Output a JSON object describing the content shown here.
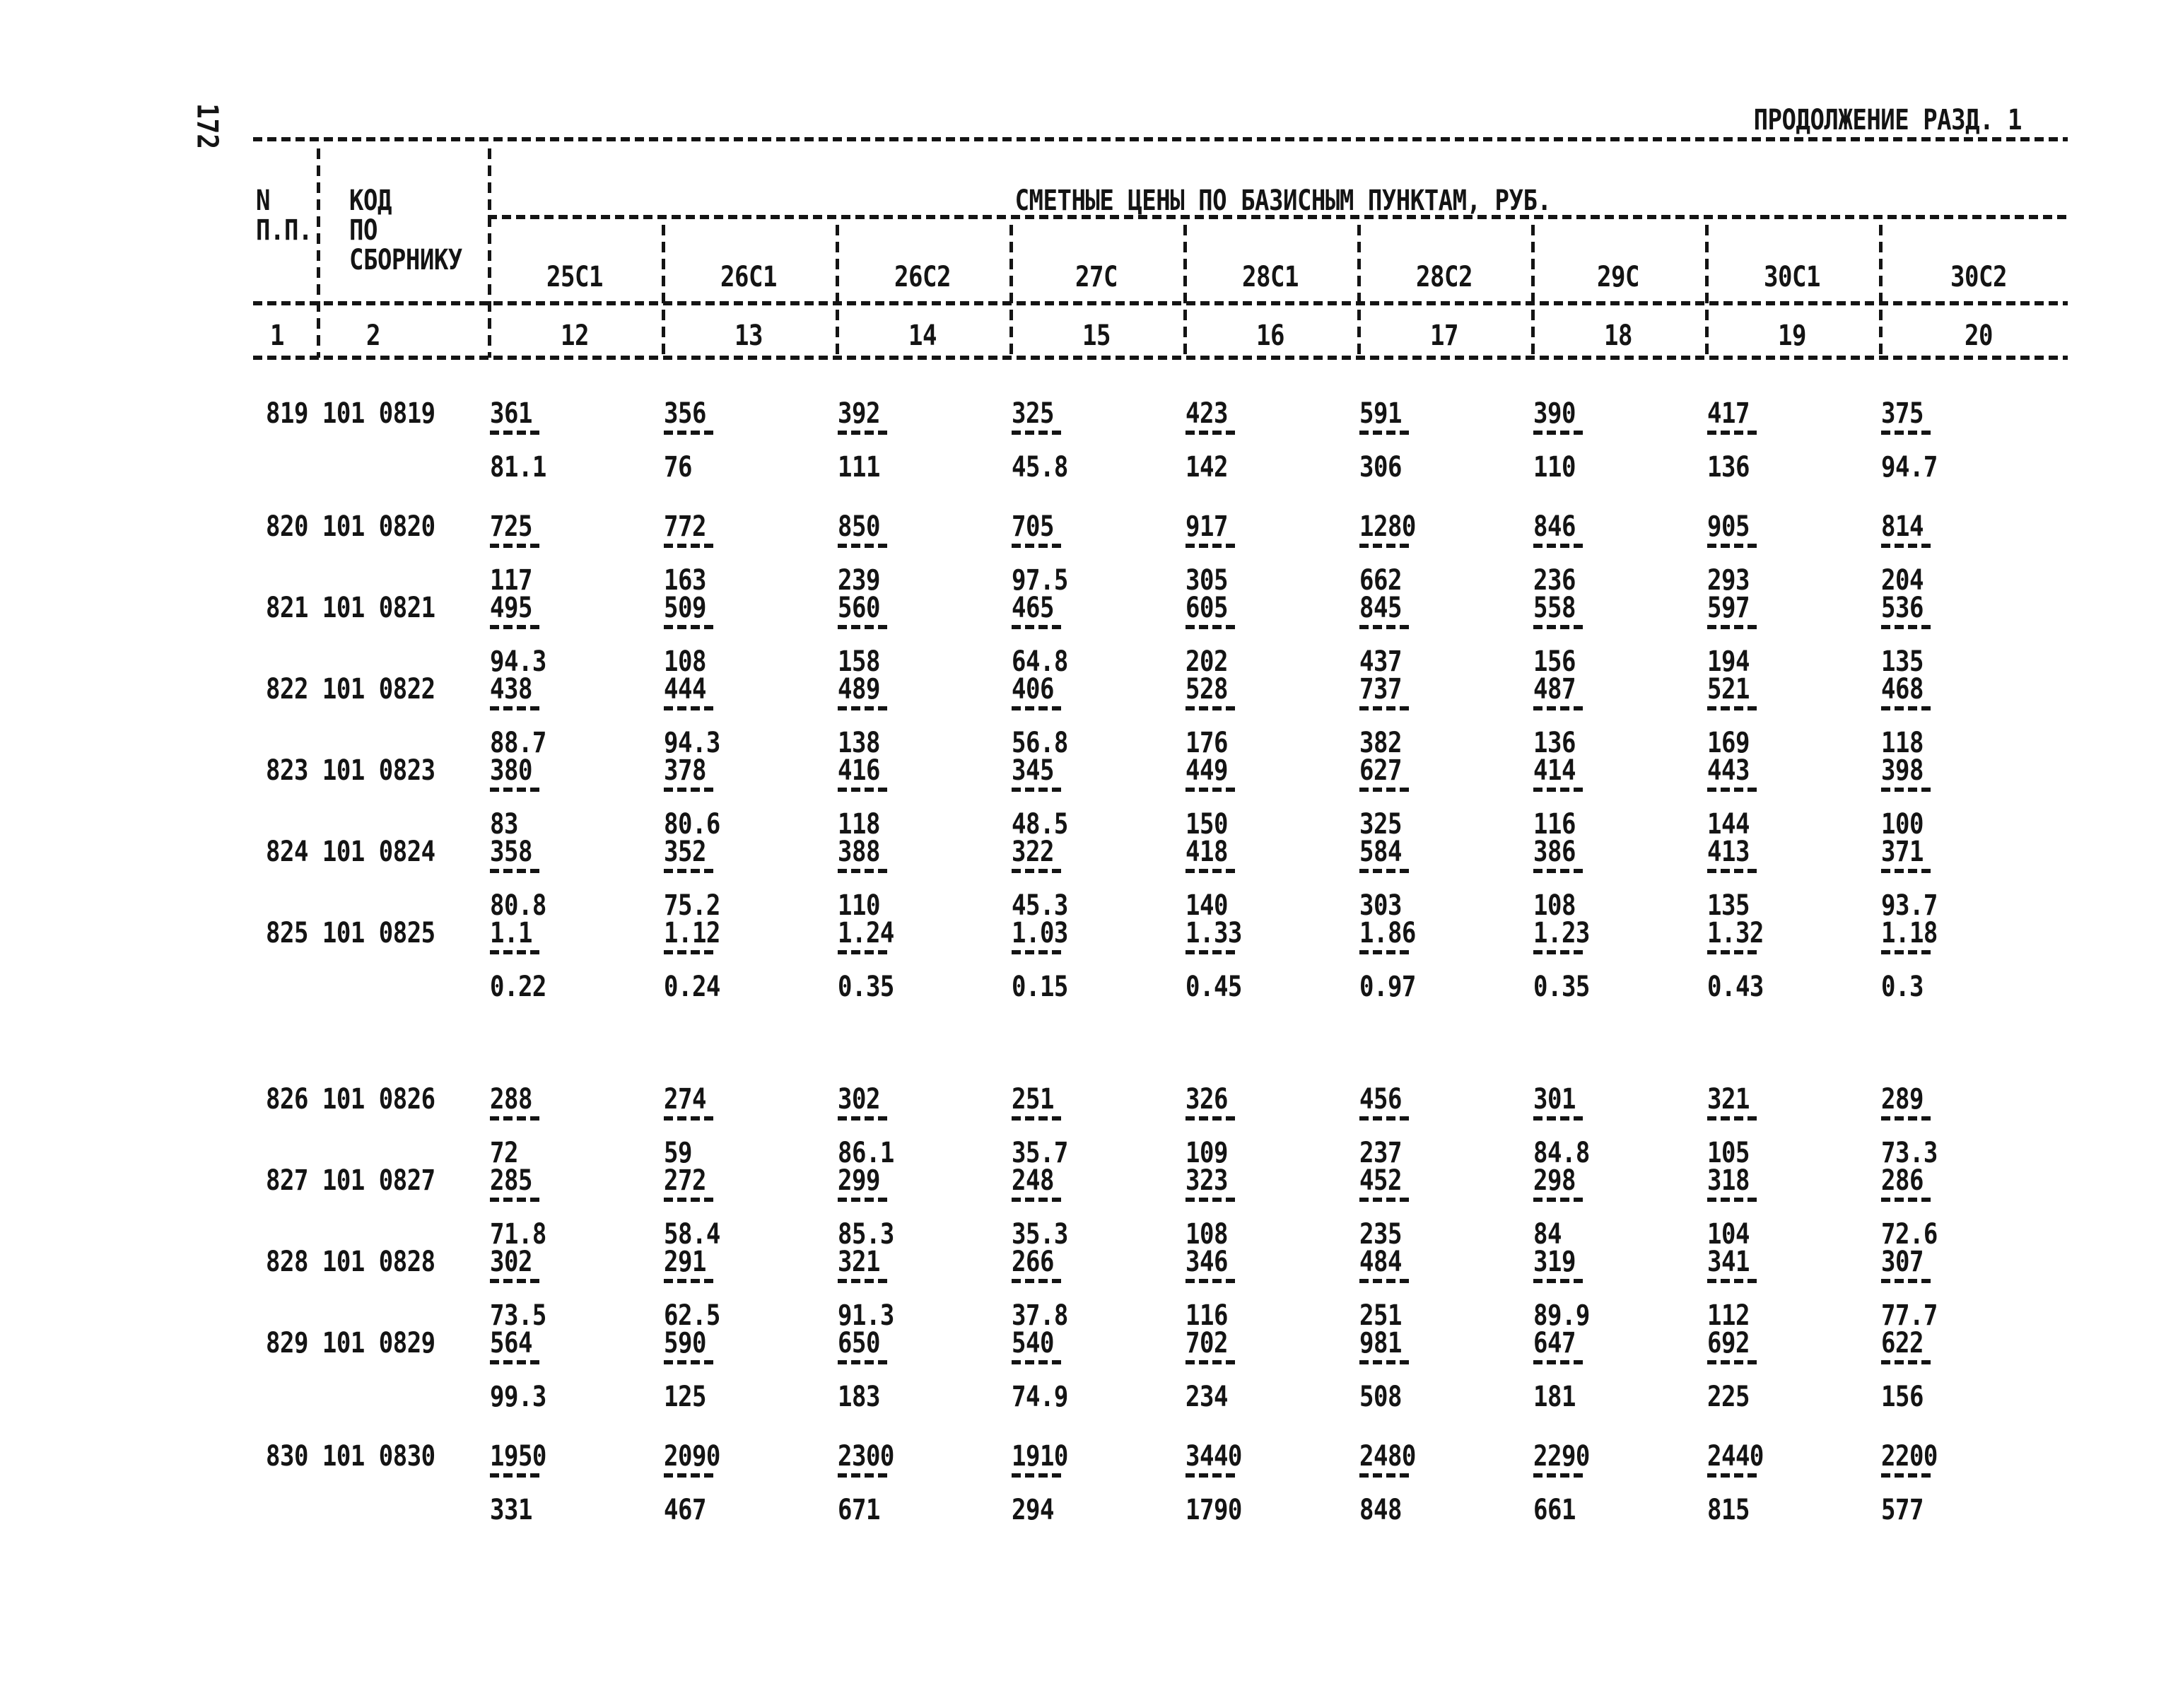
{
  "page": {
    "number": "172",
    "continuation": "ПРОДОЛЖЕНИЕ РАЗД. 1"
  },
  "colors": {
    "ink": "#141414",
    "paper": "#ffffff"
  },
  "table": {
    "group_title": "СМЕТНЫЕ ЦЕНЫ ПО БАЗИСНЫМ ПУНКТАМ, РУБ.",
    "col_n": {
      "line1": "N",
      "line2": "П.П.",
      "number": "1"
    },
    "col_code": {
      "line1": "КОД",
      "line2": "ПО",
      "line3": "СБОРНИКУ",
      "number": "2"
    },
    "columns": [
      {
        "label": "25С1",
        "number": "12"
      },
      {
        "label": "26С1",
        "number": "13"
      },
      {
        "label": "26С2",
        "number": "14"
      },
      {
        "label": "27С",
        "number": "15"
      },
      {
        "label": "28С1",
        "number": "16"
      },
      {
        "label": "28С2",
        "number": "17"
      },
      {
        "label": "29С",
        "number": "18"
      },
      {
        "label": "30С1",
        "number": "19"
      },
      {
        "label": "30С2",
        "number": "20"
      }
    ],
    "rows": [
      {
        "n": "819",
        "code": "101 0819",
        "prices": [
          {
            "num": "361",
            "den": "81.1"
          },
          {
            "num": "356",
            "den": "76"
          },
          {
            "num": "392",
            "den": "111"
          },
          {
            "num": "325",
            "den": "45.8"
          },
          {
            "num": "423",
            "den": "142"
          },
          {
            "num": "591",
            "den": "306"
          },
          {
            "num": "390",
            "den": "110"
          },
          {
            "num": "417",
            "den": "136"
          },
          {
            "num": "375",
            "den": "94.7"
          }
        ]
      },
      {
        "n": "820",
        "code": "101 0820",
        "prices": [
          {
            "num": "725",
            "den": "117"
          },
          {
            "num": "772",
            "den": "163"
          },
          {
            "num": "850",
            "den": "239"
          },
          {
            "num": "705",
            "den": "97.5"
          },
          {
            "num": "917",
            "den": "305"
          },
          {
            "num": "1280",
            "den": "662"
          },
          {
            "num": "846",
            "den": "236"
          },
          {
            "num": "905",
            "den": "293"
          },
          {
            "num": "814",
            "den": "204"
          }
        ]
      },
      {
        "n": "821",
        "code": "101 0821",
        "prices": [
          {
            "num": "495",
            "den": "94.3"
          },
          {
            "num": "509",
            "den": "108"
          },
          {
            "num": "560",
            "den": "158"
          },
          {
            "num": "465",
            "den": "64.8"
          },
          {
            "num": "605",
            "den": "202"
          },
          {
            "num": "845",
            "den": "437"
          },
          {
            "num": "558",
            "den": "156"
          },
          {
            "num": "597",
            "den": "194"
          },
          {
            "num": "536",
            "den": "135"
          }
        ]
      },
      {
        "n": "822",
        "code": "101 0822",
        "prices": [
          {
            "num": "438",
            "den": "88.7"
          },
          {
            "num": "444",
            "den": "94.3"
          },
          {
            "num": "489",
            "den": "138"
          },
          {
            "num": "406",
            "den": "56.8"
          },
          {
            "num": "528",
            "den": "176"
          },
          {
            "num": "737",
            "den": "382"
          },
          {
            "num": "487",
            "den": "136"
          },
          {
            "num": "521",
            "den": "169"
          },
          {
            "num": "468",
            "den": "118"
          }
        ]
      },
      {
        "n": "823",
        "code": "101 0823",
        "prices": [
          {
            "num": "380",
            "den": "83"
          },
          {
            "num": "378",
            "den": "80.6"
          },
          {
            "num": "416",
            "den": "118"
          },
          {
            "num": "345",
            "den": "48.5"
          },
          {
            "num": "449",
            "den": "150"
          },
          {
            "num": "627",
            "den": "325"
          },
          {
            "num": "414",
            "den": "116"
          },
          {
            "num": "443",
            "den": "144"
          },
          {
            "num": "398",
            "den": "100"
          }
        ]
      },
      {
        "n": "824",
        "code": "101 0824",
        "prices": [
          {
            "num": "358",
            "den": "80.8"
          },
          {
            "num": "352",
            "den": "75.2"
          },
          {
            "num": "388",
            "den": "110"
          },
          {
            "num": "322",
            "den": "45.3"
          },
          {
            "num": "418",
            "den": "140"
          },
          {
            "num": "584",
            "den": "303"
          },
          {
            "num": "386",
            "den": "108"
          },
          {
            "num": "413",
            "den": "135"
          },
          {
            "num": "371",
            "den": "93.7"
          }
        ]
      },
      {
        "n": "825",
        "code": "101 0825",
        "prices": [
          {
            "num": "1.1",
            "den": "0.22"
          },
          {
            "num": "1.12",
            "den": "0.24"
          },
          {
            "num": "1.24",
            "den": "0.35"
          },
          {
            "num": "1.03",
            "den": "0.15"
          },
          {
            "num": "1.33",
            "den": "0.45"
          },
          {
            "num": "1.86",
            "den": "0.97"
          },
          {
            "num": "1.23",
            "den": "0.35"
          },
          {
            "num": "1.32",
            "den": "0.43"
          },
          {
            "num": "1.18",
            "den": "0.3"
          }
        ]
      },
      {
        "n": "826",
        "code": "101 0826",
        "prices": [
          {
            "num": "288",
            "den": "72"
          },
          {
            "num": "274",
            "den": "59"
          },
          {
            "num": "302",
            "den": "86.1"
          },
          {
            "num": "251",
            "den": "35.7"
          },
          {
            "num": "326",
            "den": "109"
          },
          {
            "num": "456",
            "den": "237"
          },
          {
            "num": "301",
            "den": "84.8"
          },
          {
            "num": "321",
            "den": "105"
          },
          {
            "num": "289",
            "den": "73.3"
          }
        ]
      },
      {
        "n": "827",
        "code": "101 0827",
        "prices": [
          {
            "num": "285",
            "den": "71.8"
          },
          {
            "num": "272",
            "den": "58.4"
          },
          {
            "num": "299",
            "den": "85.3"
          },
          {
            "num": "248",
            "den": "35.3"
          },
          {
            "num": "323",
            "den": "108"
          },
          {
            "num": "452",
            "den": "235"
          },
          {
            "num": "298",
            "den": "84"
          },
          {
            "num": "318",
            "den": "104"
          },
          {
            "num": "286",
            "den": "72.6"
          }
        ]
      },
      {
        "n": "828",
        "code": "101 0828",
        "prices": [
          {
            "num": "302",
            "den": "73.5"
          },
          {
            "num": "291",
            "den": "62.5"
          },
          {
            "num": "321",
            "den": "91.3"
          },
          {
            "num": "266",
            "den": "37.8"
          },
          {
            "num": "346",
            "den": "116"
          },
          {
            "num": "484",
            "den": "251"
          },
          {
            "num": "319",
            "den": "89.9"
          },
          {
            "num": "341",
            "den": "112"
          },
          {
            "num": "307",
            "den": "77.7"
          }
        ]
      },
      {
        "n": "829",
        "code": "101 0829",
        "prices": [
          {
            "num": "564",
            "den": "99.3"
          },
          {
            "num": "590",
            "den": "125"
          },
          {
            "num": "650",
            "den": "183"
          },
          {
            "num": "540",
            "den": "74.9"
          },
          {
            "num": "702",
            "den": "234"
          },
          {
            "num": "981",
            "den": "508"
          },
          {
            "num": "647",
            "den": "181"
          },
          {
            "num": "692",
            "den": "225"
          },
          {
            "num": "622",
            "den": "156"
          }
        ]
      },
      {
        "n": "830",
        "code": "101 0830",
        "prices": [
          {
            "num": "1950",
            "den": "331"
          },
          {
            "num": "2090",
            "den": "467"
          },
          {
            "num": "2300",
            "den": "671"
          },
          {
            "num": "1910",
            "den": "294"
          },
          {
            "num": "3440",
            "den": "1790"
          },
          {
            "num": "2480",
            "den": "848"
          },
          {
            "num": "2290",
            "den": "661"
          },
          {
            "num": "2440",
            "den": "815"
          },
          {
            "num": "2200",
            "den": "577"
          }
        ]
      }
    ]
  }
}
